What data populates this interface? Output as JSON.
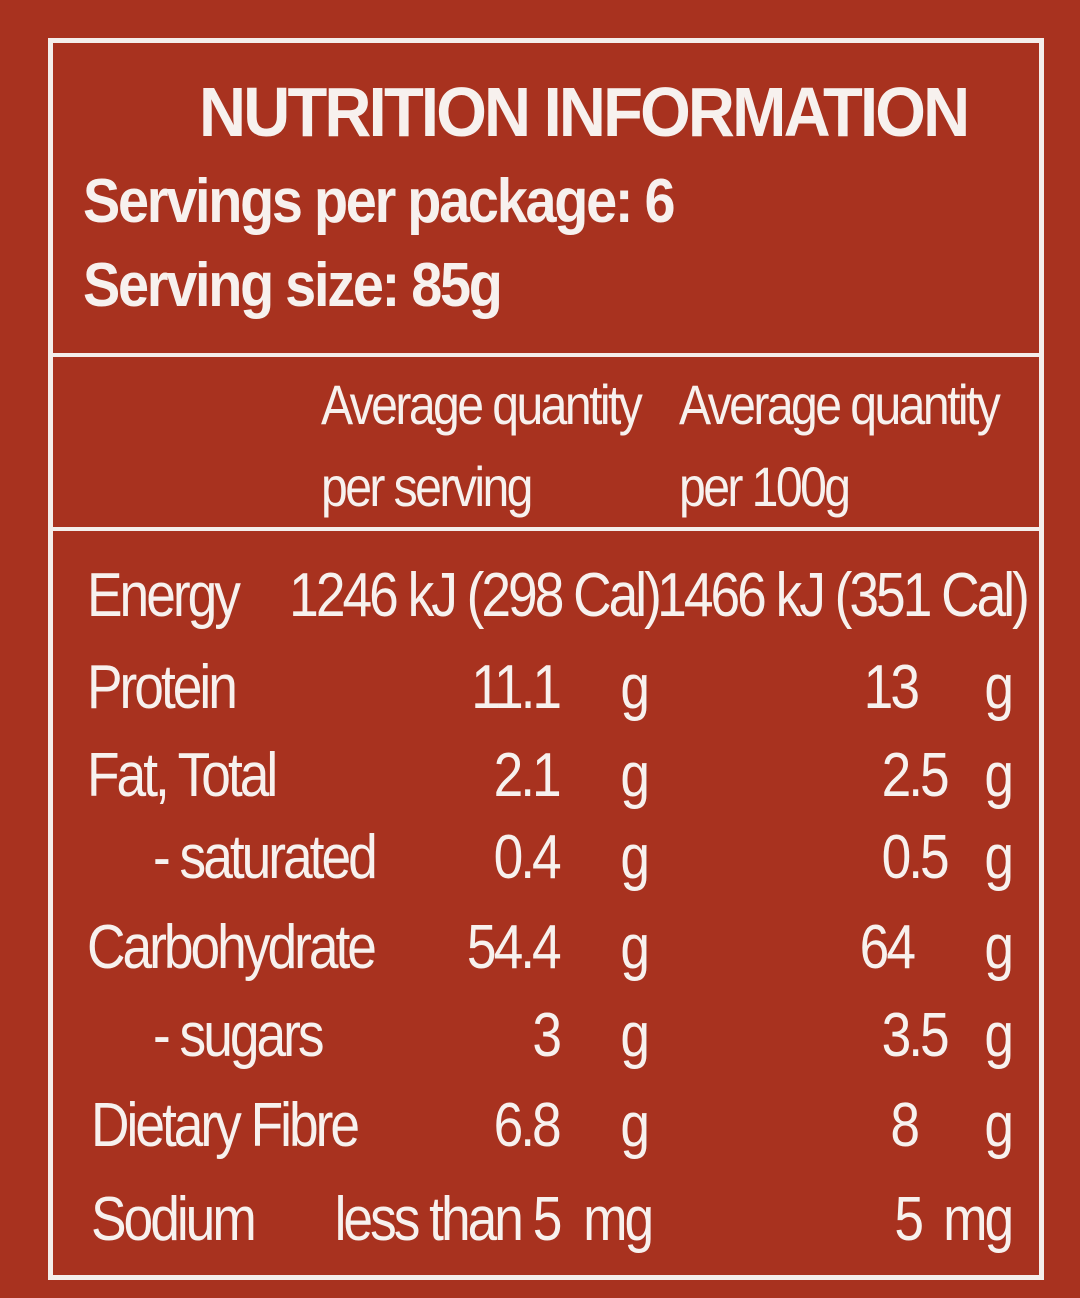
{
  "panel": {
    "title": "NUTRITION INFORMATION",
    "servings_per_package": "Servings per package: 6",
    "serving_size": "Serving size: 85g"
  },
  "columns": {
    "per_serving_line1": "Average quantity",
    "per_serving_line2": "per serving",
    "per_100g_line1": "Average quantity",
    "per_100g_line2": "per 100g"
  },
  "rows": [
    {
      "label": "Energy",
      "serving_value": "1246 kJ (298 Cal)",
      "serving_unit": "",
      "per100_value": "1466 kJ (351 Cal)",
      "per100_unit": ""
    },
    {
      "label": "Protein",
      "serving_value": "11.1",
      "serving_unit": "g",
      "per100_value": "13",
      "per100_unit": "g"
    },
    {
      "label": "Fat, Total",
      "serving_value": "2.1",
      "serving_unit": "g",
      "per100_value": "2.5",
      "per100_unit": "g"
    },
    {
      "label": "- saturated",
      "serving_value": "0.4",
      "serving_unit": "g",
      "per100_value": "0.5",
      "per100_unit": "g"
    },
    {
      "label": "Carbohydrate",
      "serving_value": "54.4",
      "serving_unit": "g",
      "per100_value": "64",
      "per100_unit": "g"
    },
    {
      "label": "- sugars",
      "serving_value": "3",
      "serving_unit": "g",
      "per100_value": "3.5",
      "per100_unit": "g"
    },
    {
      "label": "Dietary Fibre",
      "serving_value": "6.8",
      "serving_unit": "g",
      "per100_value": "8",
      "per100_unit": "g"
    },
    {
      "label": "Sodium",
      "serving_value": "less than 5",
      "serving_unit": "mg",
      "per100_value": "5",
      "per100_unit": "mg"
    }
  ],
  "colors": {
    "background": "#a8321f",
    "text": "#f7f1ee",
    "border": "#f4eeeb"
  }
}
